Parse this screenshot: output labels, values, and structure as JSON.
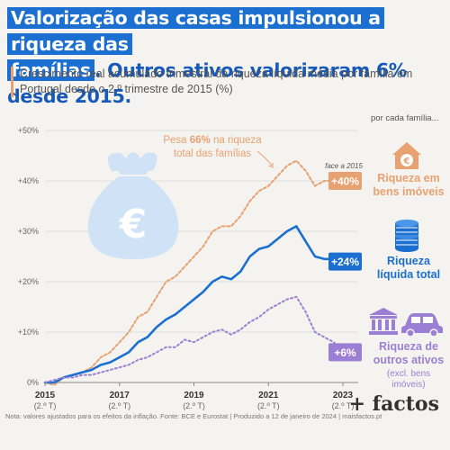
{
  "title": {
    "highlight_1": "Valorização das casas impulsionou a riqueza das",
    "highlight_2": "famílias",
    "rest": ". Outros ativos valorizaram 6% desde 2015."
  },
  "subtitle": "Crescimento real acumulado trimestral da riqueza líquida média por família em Portugal desde o 2.º trimestre de 2015 (%)",
  "sidebar": {
    "per_family": "por cada família...",
    "housing_label": "Riqueza em bens imóveis",
    "total_label": "Riqueza líquida total",
    "other_label": "Riqueza de outros ativos",
    "other_note": "(excl. bens imóveis)"
  },
  "annotations": {
    "weight_line1_pre": "Pesa ",
    "weight_pct": "66%",
    "weight_line1_post": " na riqueza",
    "weight_line2": "total das famílias",
    "vs_2015": "face a 2015"
  },
  "footer": "Nota: valores ajustados para os efeitos da inflação. Fonte: BCE e Eurostat | Produzido a 12 de janeiro de 2024 | maisfactos.pt",
  "brand": "+ factos",
  "colors": {
    "housing": "#e8a170",
    "total": "#1a6fd0",
    "other": "#9b7fd4",
    "title_highlight": "#1a6fd0",
    "icon_bg": "#cfe2f6"
  },
  "icons": [
    "money-bag-icon",
    "house-euro-icon",
    "coins-icon",
    "bank-icon",
    "car-icon"
  ],
  "chart_data": {
    "type": "line",
    "x": [
      "2015-Q2",
      "2015-Q3",
      "2015-Q4",
      "2016-Q1",
      "2016-Q2",
      "2016-Q3",
      "2016-Q4",
      "2017-Q1",
      "2017-Q2",
      "2017-Q3",
      "2017-Q4",
      "2018-Q1",
      "2018-Q2",
      "2018-Q3",
      "2018-Q4",
      "2019-Q1",
      "2019-Q2",
      "2019-Q3",
      "2019-Q4",
      "2020-Q1",
      "2020-Q2",
      "2020-Q3",
      "2020-Q4",
      "2021-Q1",
      "2021-Q2",
      "2021-Q3",
      "2021-Q4",
      "2022-Q1",
      "2022-Q2",
      "2022-Q3",
      "2022-Q4",
      "2023-Q1",
      "2023-Q2"
    ],
    "series": [
      {
        "name": "Riqueza em bens imóveis",
        "values": [
          0,
          -0.5,
          1,
          1.5,
          2,
          3,
          5,
          6,
          8,
          10,
          13,
          14,
          17,
          20,
          21,
          23,
          25,
          27,
          30,
          31,
          31,
          33,
          36,
          38,
          39,
          41,
          43,
          44,
          42,
          39,
          40,
          40,
          40
        ]
      },
      {
        "name": "Riqueza líquida total",
        "values": [
          0,
          0,
          1,
          1.5,
          2,
          2.5,
          3.5,
          4,
          5,
          6,
          8,
          9,
          11,
          12.5,
          13.5,
          15,
          16.5,
          18,
          20,
          21,
          20.5,
          22,
          25,
          26.5,
          27,
          28.5,
          30,
          31,
          28,
          25,
          24.5,
          24.5,
          24
        ]
      },
      {
        "name": "Riqueza de outros ativos",
        "values": [
          0,
          0.5,
          1,
          1,
          1.5,
          1.5,
          2,
          2.5,
          3,
          3.5,
          4.5,
          5,
          6,
          7,
          7,
          8.5,
          8,
          9,
          10,
          10.5,
          9.5,
          10.5,
          12,
          13,
          14.5,
          15.5,
          16.5,
          17,
          14,
          10,
          9,
          8,
          6
        ]
      }
    ],
    "end_labels": [
      "+40%",
      "+24%",
      "+6%"
    ],
    "x_ticks": [
      {
        "year": "2015",
        "q": "(2.º T)",
        "i": 0
      },
      {
        "year": "2017",
        "q": "(2.º T)",
        "i": 8
      },
      {
        "year": "2019",
        "q": "(2.º T)",
        "i": 16
      },
      {
        "year": "2021",
        "q": "(2.º T)",
        "i": 24
      },
      {
        "year": "2023",
        "q": "(2.º T)",
        "i": 32
      }
    ],
    "y_ticks": [
      0,
      10,
      20,
      30,
      40,
      50
    ],
    "y_tick_labels": [
      "0%",
      "+10%",
      "+20%",
      "+30%",
      "+40%",
      "+50%"
    ],
    "ylim": [
      0,
      50
    ]
  }
}
